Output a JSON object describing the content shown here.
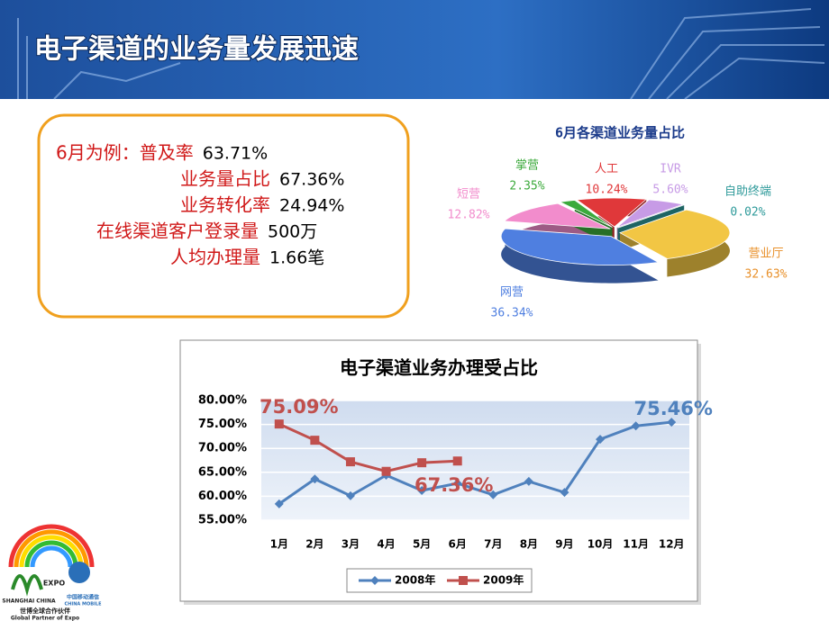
{
  "header": {
    "title": "电子渠道的业务量发展迅速"
  },
  "textbox": {
    "rows": [
      {
        "label": "6月为例：普及率",
        "value": "63.71%"
      },
      {
        "label": "业务量占比",
        "value": "67.36%"
      },
      {
        "label": "业务转化率",
        "value": "24.94%"
      },
      {
        "label": "在线渠道客户登录量",
        "value": "500万"
      },
      {
        "label": "人均办理量",
        "value": "1.66笔"
      }
    ]
  },
  "chart_data": [
    {
      "type": "pie",
      "title": "6月各渠道业务量占比",
      "categories": [
        "人工",
        "IVR",
        "自助终端",
        "营业厅",
        "网营",
        "短营",
        "掌营"
      ],
      "values": [
        10.24,
        5.6,
        0.02,
        32.63,
        36.34,
        12.82,
        2.35
      ],
      "value_labels": [
        "10.24%",
        "5.60%",
        "0.02%",
        "32.63%",
        "36.34%",
        "12.82%",
        "2.35%"
      ],
      "colors": [
        "#e0383a",
        "#c79be6",
        "#2e9a9a",
        "#f2c644",
        "#4f7fe0",
        "#f28ccc",
        "#3caa3c"
      ]
    },
    {
      "type": "line",
      "title": "电子渠道业务办理受占比",
      "categories": [
        "1月",
        "2月",
        "3月",
        "4月",
        "5月",
        "6月",
        "7月",
        "8月",
        "9月",
        "10月",
        "11月",
        "12月"
      ],
      "series": [
        {
          "name": "2008年",
          "color": "#4f81bd",
          "values": [
            58.4,
            63.6,
            60.1,
            64.4,
            61.2,
            62.7,
            60.3,
            63.1,
            60.8,
            71.9,
            74.7,
            75.46
          ],
          "value_labels": [
            null,
            null,
            null,
            null,
            null,
            null,
            null,
            null,
            null,
            null,
            null,
            "75.46%"
          ]
        },
        {
          "name": "2009年",
          "color": "#c0504d",
          "values": [
            75.09,
            71.7,
            67.2,
            65.2,
            67.0,
            67.36,
            null,
            null,
            null,
            null,
            null,
            null
          ],
          "value_labels": [
            "75.09%",
            null,
            null,
            null,
            null,
            "67.36%",
            null,
            null,
            null,
            null,
            null,
            null
          ]
        }
      ],
      "ylim": [
        55,
        80
      ],
      "yticks": [
        {
          "value": 55,
          "label": "55.00%"
        },
        {
          "value": 60,
          "label": "60.00%"
        },
        {
          "value": 65,
          "label": "65.00%"
        },
        {
          "value": 70,
          "label": "70.00%"
        },
        {
          "value": 75,
          "label": "75.00%"
        },
        {
          "value": 80,
          "label": "80.00%"
        }
      ],
      "grid": true,
      "legend": "bottom"
    }
  ],
  "logo": {
    "expo": "EXPO",
    "city": "SHANGHAI CHINA",
    "company": "中国移动通信",
    "company_en": "CHINA MOBILE",
    "partner": "世博全球合作伙伴",
    "partner_en": "Global Partner of Expo"
  }
}
